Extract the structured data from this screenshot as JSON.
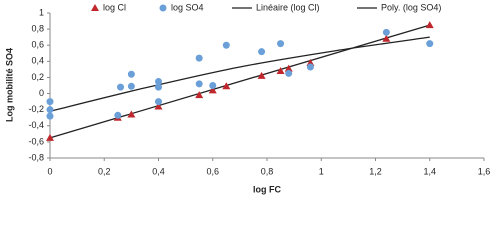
{
  "chart_data": {
    "type": "scatter",
    "x_label": "log FC",
    "y_label": "Log mobilité SO4",
    "xlim": [
      0,
      1.6
    ],
    "ylim": [
      -0.8,
      1
    ],
    "grid": false,
    "legend": "top",
    "xticks": [
      0,
      {
        "value": 0.2,
        "label": "0,2"
      },
      {
        "value": 0.4,
        "label": "0,4"
      },
      {
        "value": 0.6,
        "label": "0,6"
      },
      {
        "value": 0.8,
        "label": "0,8"
      },
      1,
      {
        "value": 1.2,
        "label": "1,2"
      },
      {
        "value": 1.4,
        "label": "1,4"
      },
      {
        "value": 1.6,
        "label": "1,6"
      }
    ],
    "yticks": [
      {
        "value": -0.8,
        "label": "-0,8"
      },
      {
        "value": -0.6,
        "label": "-0,6"
      },
      {
        "value": -0.4,
        "label": "-0,4"
      },
      {
        "value": -0.2,
        "label": "-0,2"
      },
      0,
      {
        "value": 0.2,
        "label": "0,2"
      },
      {
        "value": 0.4,
        "label": "0,4"
      },
      {
        "value": 0.6,
        "label": "0,6"
      },
      {
        "value": 0.8,
        "label": "0,8"
      },
      1
    ],
    "series": [
      {
        "name": "log Cl",
        "kind": "scatter",
        "marker": "triangle",
        "color": "#c0272d",
        "x": [
          0,
          0.25,
          0.3,
          0.4,
          0.55,
          0.6,
          0.65,
          0.78,
          0.85,
          0.88,
          0.96,
          1.24,
          1.4
        ],
        "values": [
          -0.55,
          -0.3,
          -0.26,
          -0.16,
          -0.02,
          0.04,
          0.09,
          0.22,
          0.28,
          0.31,
          0.38,
          0.68,
          0.85
        ]
      },
      {
        "name": "log SO4",
        "kind": "scatter",
        "marker": "circle",
        "color": "#6a9fd8",
        "x": [
          0,
          0,
          0,
          0.26,
          0.25,
          0.3,
          0.3,
          0.4,
          0.4,
          0.4,
          0.55,
          0.55,
          0.6,
          0.65,
          0.78,
          0.85,
          0.88,
          0.96,
          1.24,
          1.4
        ],
        "values": [
          -0.1,
          -0.2,
          -0.28,
          0.08,
          -0.27,
          0.24,
          0.09,
          0.15,
          0.08,
          -0.1,
          0.44,
          0.12,
          0.1,
          0.6,
          0.52,
          0.62,
          0.25,
          0.33,
          0.76,
          0.62
        ]
      },
      {
        "name": "Linéaire (log Cl)",
        "kind": "line",
        "color": "#222222",
        "x": [
          0,
          1.4
        ],
        "values": [
          -0.55,
          0.85
        ]
      },
      {
        "name": "Poly. (log SO4)",
        "kind": "line",
        "color": "#222222",
        "x": [
          0,
          0.35,
          0.7,
          1.05,
          1.4
        ],
        "values": [
          -0.22,
          0.07,
          0.33,
          0.53,
          0.7
        ]
      }
    ]
  }
}
